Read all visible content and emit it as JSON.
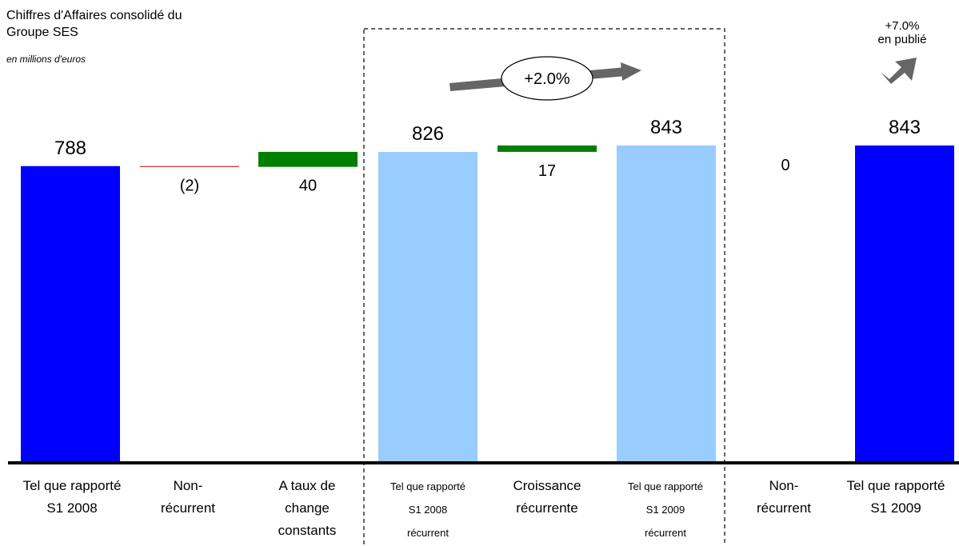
{
  "title_line1": "Chiffres d'Affaires consolidé du",
  "title_line2": "Groupe SES",
  "subtitle": "en millions d'euros",
  "annotations": {
    "recurring_growth": "+2.0%",
    "published_growth_value": "+7.0%",
    "published_growth_text": "en publié"
  },
  "colors": {
    "total": "#0000FF",
    "recurring_total": "#99CCFF",
    "positive": "#008000",
    "negative": "#CC0000"
  },
  "chart_data": {
    "type": "bar",
    "subtype": "waterfall",
    "unit": "millions d'euros",
    "ylim": [
      0,
      843
    ],
    "grid": false,
    "categories": [
      [
        "Tel que rapporté",
        "S1 2008"
      ],
      [
        "Non-",
        "récurrent"
      ],
      [
        "A taux de",
        "change",
        "constants"
      ],
      [
        "Tel que rapporté",
        "S1 2008",
        "récurrent"
      ],
      [
        "Croissance",
        "récurrente"
      ],
      [
        "Tel que rapporté",
        "S1 2009",
        "récurrent"
      ],
      [
        "Non-",
        "récurrent"
      ],
      [
        "Tel que rapporté",
        "S1 2009"
      ]
    ],
    "bars": [
      {
        "kind": "total",
        "value": 788,
        "label": "788"
      },
      {
        "kind": "delta",
        "value": -2,
        "label": "(2)"
      },
      {
        "kind": "delta",
        "value": 40,
        "label": "40"
      },
      {
        "kind": "recurring_total",
        "value": 826,
        "label": "826"
      },
      {
        "kind": "delta",
        "value": 17,
        "label": "17"
      },
      {
        "kind": "recurring_total",
        "value": 843,
        "label": "843"
      },
      {
        "kind": "delta",
        "value": 0,
        "label": "0"
      },
      {
        "kind": "total",
        "value": 843,
        "label": "843"
      }
    ]
  }
}
